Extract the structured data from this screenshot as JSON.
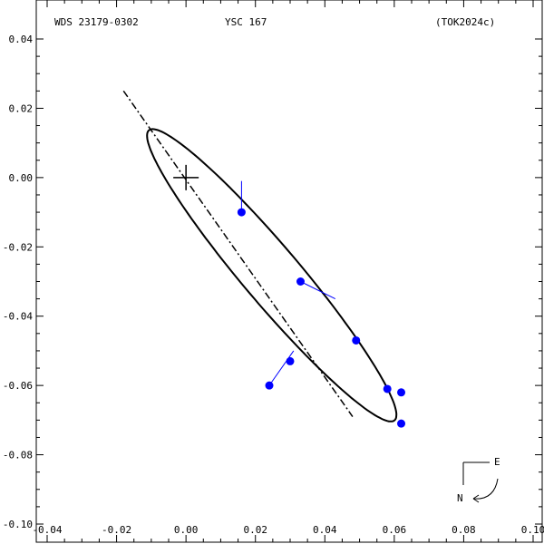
{
  "header": {
    "left": "WDS 23179-0302",
    "center": "YSC 167",
    "right": "(TOK2024c)"
  },
  "compass": {
    "east": "E",
    "north": "N"
  },
  "chart_data": {
    "type": "scatter",
    "title": "",
    "xlabel": "",
    "ylabel": "",
    "xlim": [
      -0.04,
      0.1
    ],
    "ylim": [
      -0.1,
      0.04
    ],
    "x_ticks": [
      -0.04,
      -0.02,
      0.0,
      0.02,
      0.04,
      0.06,
      0.08,
      0.1
    ],
    "y_ticks": [
      0.04,
      0.02,
      0.0,
      -0.02,
      -0.04,
      -0.06,
      -0.08,
      -0.1
    ],
    "x_tick_labels": [
      "-0.04",
      "-0.02",
      "0.00",
      "0.02",
      "0.04",
      "0.06",
      "0.08",
      "0.10"
    ],
    "y_tick_labels": [
      "0.04",
      "0.02",
      "0.00",
      "-0.02",
      "-0.04",
      "-0.06",
      "-0.08",
      "-0.10"
    ],
    "grid": false,
    "primary": {
      "x": 0.0,
      "y": 0.0
    },
    "orbit_ellipse": {
      "center": [
        0.0247,
        -0.0282
      ],
      "semi_major": 0.0548,
      "semi_minor": 0.0082,
      "angle_deg": -49.8
    },
    "line_of_nodes": {
      "from": [
        -0.018,
        0.025
      ],
      "to": [
        0.048,
        -0.069
      ]
    },
    "observations": [
      {
        "x": 0.016,
        "y": -0.01,
        "fx": 0.016,
        "fy": -0.001
      },
      {
        "x": 0.033,
        "y": -0.03,
        "fx": 0.043,
        "fy": -0.035
      },
      {
        "x": 0.049,
        "y": -0.047,
        "fx": 0.049,
        "fy": -0.046
      },
      {
        "x": 0.03,
        "y": -0.053,
        "fx": 0.03,
        "fy": -0.052
      },
      {
        "x": 0.024,
        "y": -0.06,
        "fx": 0.031,
        "fy": -0.05
      },
      {
        "x": 0.058,
        "y": -0.061,
        "fx": 0.058,
        "fy": -0.06
      },
      {
        "x": 0.062,
        "y": -0.062,
        "fx": 0.062,
        "fy": -0.061
      },
      {
        "x": 0.062,
        "y": -0.071,
        "fx": 0.062,
        "fy": -0.07
      }
    ],
    "colors": {
      "observation": "#0000ff",
      "orbit": "#000000"
    }
  }
}
